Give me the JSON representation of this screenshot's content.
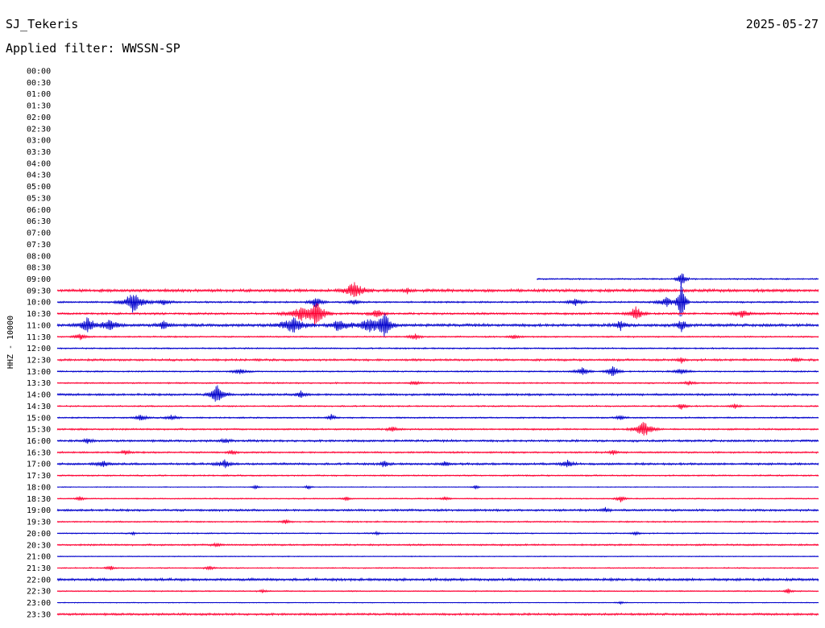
{
  "header": {
    "station": "SJ_Tekeris",
    "date": "2025-05-27",
    "filter": "Applied filter: WWSSN-SP"
  },
  "chart_data": {
    "type": "line",
    "title": "SJ_Tekeris",
    "ylabel": "HHZ - 10000",
    "colors": {
      "odd": "#0000cc",
      "even": "#ff0033"
    },
    "tick_labels": [
      "00:00",
      "00:30",
      "01:00",
      "01:30",
      "02:00",
      "02:30",
      "03:00",
      "03:30",
      "04:00",
      "04:30",
      "05:00",
      "05:30",
      "06:00",
      "06:30",
      "07:00",
      "07:30",
      "08:00",
      "08:30",
      "09:00",
      "09:30",
      "10:00",
      "10:30",
      "11:00",
      "11:30",
      "12:00",
      "12:30",
      "13:00",
      "13:30",
      "14:00",
      "14:30",
      "15:00",
      "15:30",
      "16:00",
      "16:30",
      "17:00",
      "17:30",
      "18:00",
      "18:30",
      "19:00",
      "19:30",
      "20:00",
      "20:30",
      "21:00",
      "21:30",
      "22:00",
      "22:30",
      "23:00",
      "23:30"
    ],
    "x_range_minutes": [
      0,
      30
    ],
    "traces": [
      {
        "label": "09:00",
        "start": 0.63,
        "noise": 1.0,
        "events": [
          [
            0.82,
            12,
            0.4
          ]
        ]
      },
      {
        "label": "09:30",
        "start": 0,
        "noise": 2.0,
        "events": [
          [
            0.39,
            10,
            1.2
          ],
          [
            0.46,
            3,
            0.5
          ]
        ]
      },
      {
        "label": "10:00",
        "start": 0,
        "noise": 1.2,
        "events": [
          [
            0.1,
            14,
            1.2
          ],
          [
            0.14,
            4,
            0.8
          ],
          [
            0.34,
            8,
            0.6
          ],
          [
            0.39,
            4,
            0.5
          ],
          [
            0.68,
            5,
            0.8
          ],
          [
            0.8,
            6,
            1.0
          ],
          [
            0.82,
            29,
            0.4
          ]
        ]
      },
      {
        "label": "10:30",
        "start": 0,
        "noise": 1.5,
        "events": [
          [
            0.32,
            8,
            1.5
          ],
          [
            0.34,
            16,
            1.0
          ],
          [
            0.42,
            6,
            0.6
          ],
          [
            0.76,
            10,
            0.8
          ],
          [
            0.9,
            5,
            1.0
          ]
        ]
      },
      {
        "label": "11:00",
        "start": 0,
        "noise": 2.0,
        "events": [
          [
            0.04,
            10,
            1.0
          ],
          [
            0.07,
            8,
            0.8
          ],
          [
            0.14,
            6,
            0.6
          ],
          [
            0.31,
            10,
            1.5
          ],
          [
            0.37,
            8,
            1.0
          ],
          [
            0.41,
            8,
            1.5
          ],
          [
            0.43,
            14,
            0.8
          ],
          [
            0.74,
            6,
            0.6
          ],
          [
            0.82,
            8,
            0.5
          ]
        ]
      },
      {
        "label": "11:30",
        "start": 0,
        "noise": 1.0,
        "events": [
          [
            0.03,
            4,
            0.6
          ],
          [
            0.47,
            4,
            0.6
          ],
          [
            0.6,
            3,
            0.5
          ]
        ]
      },
      {
        "label": "12:00",
        "start": 0,
        "noise": 1.0,
        "events": []
      },
      {
        "label": "12:30",
        "start": 0,
        "noise": 1.5,
        "events": [
          [
            0.82,
            5,
            0.3
          ],
          [
            0.97,
            3,
            0.3
          ]
        ]
      },
      {
        "label": "13:00",
        "start": 0,
        "noise": 1.0,
        "events": [
          [
            0.24,
            4,
            0.8
          ],
          [
            0.69,
            5,
            0.8
          ],
          [
            0.73,
            10,
            0.6
          ],
          [
            0.82,
            4,
            0.8
          ]
        ]
      },
      {
        "label": "13:30",
        "start": 0,
        "noise": 1.0,
        "events": [
          [
            0.47,
            3,
            0.5
          ],
          [
            0.83,
            3,
            0.5
          ]
        ]
      },
      {
        "label": "14:00",
        "start": 0,
        "noise": 1.5,
        "events": [
          [
            0.21,
            12,
            0.8
          ],
          [
            0.32,
            5,
            0.5
          ]
        ]
      },
      {
        "label": "14:30",
        "start": 0,
        "noise": 1.0,
        "events": [
          [
            0.82,
            4,
            0.5
          ],
          [
            0.89,
            3,
            0.5
          ]
        ]
      },
      {
        "label": "15:00",
        "start": 0,
        "noise": 1.0,
        "events": [
          [
            0.11,
            5,
            0.6
          ],
          [
            0.15,
            4,
            0.6
          ],
          [
            0.36,
            4,
            0.4
          ],
          [
            0.74,
            4,
            0.4
          ]
        ]
      },
      {
        "label": "15:30",
        "start": 0,
        "noise": 1.2,
        "events": [
          [
            0.44,
            4,
            0.5
          ],
          [
            0.77,
            11,
            1.0
          ]
        ]
      },
      {
        "label": "16:00",
        "start": 0,
        "noise": 1.5,
        "events": [
          [
            0.04,
            3,
            0.5
          ],
          [
            0.22,
            3,
            0.4
          ]
        ]
      },
      {
        "label": "16:30",
        "start": 0,
        "noise": 1.2,
        "events": [
          [
            0.09,
            3,
            0.5
          ],
          [
            0.23,
            3,
            0.4
          ],
          [
            0.73,
            3,
            0.4
          ]
        ]
      },
      {
        "label": "17:00",
        "start": 0,
        "noise": 1.5,
        "events": [
          [
            0.06,
            4,
            0.8
          ],
          [
            0.22,
            5,
            0.8
          ],
          [
            0.43,
            5,
            0.4
          ],
          [
            0.51,
            4,
            0.4
          ],
          [
            0.67,
            5,
            0.6
          ]
        ]
      },
      {
        "label": "17:30",
        "start": 0,
        "noise": 1.0,
        "events": []
      },
      {
        "label": "18:00",
        "start": 0,
        "noise": 0.6,
        "events": [
          [
            0.26,
            3,
            0.3
          ],
          [
            0.33,
            3,
            0.3
          ],
          [
            0.55,
            3,
            0.3
          ]
        ]
      },
      {
        "label": "18:30",
        "start": 0,
        "noise": 0.8,
        "events": [
          [
            0.03,
            3,
            0.4
          ],
          [
            0.38,
            3,
            0.3
          ],
          [
            0.51,
            3,
            0.4
          ],
          [
            0.74,
            4,
            0.5
          ]
        ]
      },
      {
        "label": "19:00",
        "start": 0,
        "noise": 1.5,
        "events": [
          [
            0.72,
            3,
            0.3
          ]
        ]
      },
      {
        "label": "19:30",
        "start": 0,
        "noise": 1.0,
        "events": [
          [
            0.3,
            3,
            0.4
          ]
        ]
      },
      {
        "label": "20:00",
        "start": 0,
        "noise": 0.8,
        "events": [
          [
            0.1,
            2,
            0.3
          ],
          [
            0.42,
            2,
            0.3
          ],
          [
            0.76,
            3,
            0.4
          ]
        ]
      },
      {
        "label": "20:30",
        "start": 0,
        "noise": 1.2,
        "events": [
          [
            0.21,
            3,
            0.4
          ]
        ]
      },
      {
        "label": "21:00",
        "start": 0,
        "noise": 0.6,
        "events": []
      },
      {
        "label": "21:30",
        "start": 0,
        "noise": 0.8,
        "events": [
          [
            0.07,
            3,
            0.4
          ],
          [
            0.2,
            3,
            0.4
          ]
        ]
      },
      {
        "label": "22:00",
        "start": 0,
        "noise": 1.8,
        "events": []
      },
      {
        "label": "22:30",
        "start": 0,
        "noise": 0.8,
        "events": [
          [
            0.27,
            2,
            0.4
          ],
          [
            0.96,
            4,
            0.3
          ]
        ]
      },
      {
        "label": "23:00",
        "start": 0,
        "noise": 0.6,
        "events": [
          [
            0.74,
            2,
            0.3
          ]
        ]
      },
      {
        "label": "23:30",
        "start": 0,
        "noise": 1.5,
        "events": []
      }
    ]
  }
}
